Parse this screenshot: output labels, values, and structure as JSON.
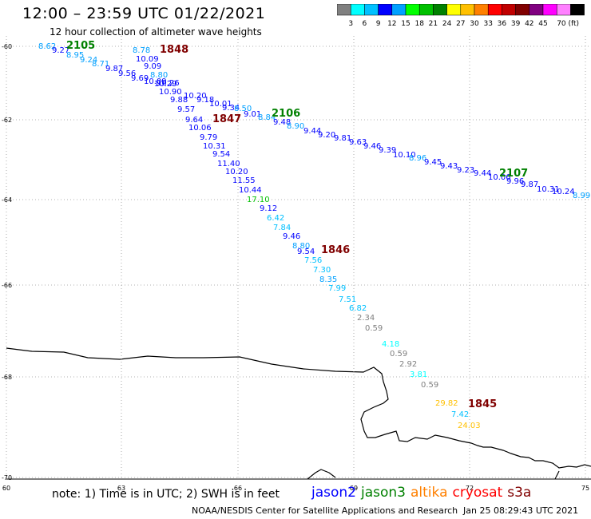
{
  "header": {
    "title": "12:00 – 23:59 UTC 01/22/2021",
    "subtitle": "12 hour collection of altimeter wave heights"
  },
  "colorbar": {
    "colors": [
      "#808080",
      "#00ffff",
      "#00c0ff",
      "#0000ff",
      "#00a0ff",
      "#00ff00",
      "#00c000",
      "#008000",
      "#ffff00",
      "#ffc000",
      "#ff8000",
      "#ff0000",
      "#c00000",
      "#800000",
      "#800080",
      "#ff00ff",
      "#ff80ff",
      "#000000"
    ],
    "labels": [
      "3",
      "6",
      "9",
      "12",
      "15",
      "18",
      "21",
      "24",
      "27",
      "30",
      "33",
      "36",
      "39",
      "42",
      "45",
      "70 (ft)"
    ]
  },
  "axes": {
    "lat_labels": [
      "-60",
      "-62",
      "-64",
      "-66",
      "-68",
      "-70"
    ],
    "lon_labels": [
      "60",
      "63",
      "66",
      "69",
      "72",
      "75"
    ]
  },
  "passes": [
    {
      "label": "2105",
      "color": "#008000"
    },
    {
      "label": "1848",
      "color": "#800000"
    },
    {
      "label": "1847",
      "color": "#800000"
    },
    {
      "label": "2106",
      "color": "#008000"
    },
    {
      "label": "2107",
      "color": "#008000"
    },
    {
      "label": "1846",
      "color": "#800000"
    },
    {
      "label": "1845",
      "color": "#800000"
    }
  ],
  "track_a": [
    {
      "v": "8.62",
      "c": "#00a0ff"
    },
    {
      "v": "9.27",
      "c": "#0000ff"
    },
    {
      "v": "8.95",
      "c": "#00a0ff"
    },
    {
      "v": "9.24",
      "c": "#00a0ff"
    },
    {
      "v": "8.71",
      "c": "#00a0ff"
    },
    {
      "v": "9.87",
      "c": "#0000ff"
    },
    {
      "v": "9.56",
      "c": "#0000ff"
    },
    {
      "v": "9.69",
      "c": "#0000ff"
    },
    {
      "v": "10.09",
      "c": "#0000ff"
    },
    {
      "v": "10.26",
      "c": "#0000ff"
    },
    {
      "v": "10.20",
      "c": "#0000ff"
    },
    {
      "v": "9.18",
      "c": "#0000ff"
    },
    {
      "v": "10.01",
      "c": "#0000ff"
    },
    {
      "v": "9.34",
      "c": "#0000ff"
    },
    {
      "v": "8.50",
      "c": "#00a0ff"
    },
    {
      "v": "9.01",
      "c": "#0000ff"
    },
    {
      "v": "8.84",
      "c": "#00a0ff"
    },
    {
      "v": "9.48",
      "c": "#0000ff"
    },
    {
      "v": "8.90",
      "c": "#00a0ff"
    },
    {
      "v": "9.44",
      "c": "#0000ff"
    },
    {
      "v": "9.20",
      "c": "#0000ff"
    },
    {
      "v": "9.81",
      "c": "#0000ff"
    },
    {
      "v": "9.63",
      "c": "#0000ff"
    },
    {
      "v": "9.46",
      "c": "#0000ff"
    },
    {
      "v": "9.39",
      "c": "#0000ff"
    },
    {
      "v": "10.10",
      "c": "#0000ff"
    },
    {
      "v": "8.96",
      "c": "#00a0ff"
    },
    {
      "v": "9.45",
      "c": "#0000ff"
    },
    {
      "v": "9.43",
      "c": "#0000ff"
    },
    {
      "v": "9.23",
      "c": "#0000ff"
    },
    {
      "v": "9.44",
      "c": "#0000ff"
    },
    {
      "v": "10.06",
      "c": "#0000ff"
    },
    {
      "v": "9.96",
      "c": "#0000ff"
    },
    {
      "v": "9.87",
      "c": "#0000ff"
    },
    {
      "v": "10.31",
      "c": "#0000ff"
    },
    {
      "v": "10.24",
      "c": "#0000ff"
    },
    {
      "v": "8.99",
      "c": "#00a0ff"
    }
  ],
  "track_b": [
    {
      "v": "8.78",
      "c": "#00a0ff"
    },
    {
      "v": "10.09",
      "c": "#0000ff"
    },
    {
      "v": "9.09",
      "c": "#0000ff"
    },
    {
      "v": "8.80",
      "c": "#00a0ff"
    },
    {
      "v": "10.29",
      "c": "#0000ff"
    },
    {
      "v": "10.90",
      "c": "#0000ff"
    },
    {
      "v": "9.88",
      "c": "#0000ff"
    },
    {
      "v": "9.57",
      "c": "#0000ff"
    },
    {
      "v": "9.64",
      "c": "#0000ff"
    },
    {
      "v": "10.06",
      "c": "#0000ff"
    },
    {
      "v": "9.79",
      "c": "#0000ff"
    },
    {
      "v": "10.31",
      "c": "#0000ff"
    },
    {
      "v": "9.54",
      "c": "#0000ff"
    },
    {
      "v": "11.40",
      "c": "#0000ff"
    },
    {
      "v": "10.20",
      "c": "#0000ff"
    },
    {
      "v": "11.55",
      "c": "#0000ff"
    },
    {
      "v": "10.44",
      "c": "#0000ff"
    },
    {
      "v": "17.10",
      "c": "#00c000"
    },
    {
      "v": "9.12",
      "c": "#0000ff"
    },
    {
      "v": "6.42",
      "c": "#00c0ff"
    },
    {
      "v": "7.84",
      "c": "#00c0ff"
    },
    {
      "v": "9.46",
      "c": "#0000ff"
    },
    {
      "v": "8.80",
      "c": "#00a0ff"
    },
    {
      "v": "9.54",
      "c": "#0000ff"
    },
    {
      "v": "7.56",
      "c": "#00c0ff"
    },
    {
      "v": "7.30",
      "c": "#00c0ff"
    },
    {
      "v": "8.35",
      "c": "#00a0ff"
    },
    {
      "v": "7.99",
      "c": "#00c0ff"
    },
    {
      "v": "7.51",
      "c": "#00c0ff"
    },
    {
      "v": "6.82",
      "c": "#00c0ff"
    },
    {
      "v": "2.34",
      "c": "#808080"
    },
    {
      "v": "0.59",
      "c": "#808080"
    },
    {
      "v": "4.18",
      "c": "#00ffff"
    },
    {
      "v": "0.59",
      "c": "#808080"
    },
    {
      "v": "2.92",
      "c": "#808080"
    },
    {
      "v": "3.81",
      "c": "#00ffff"
    },
    {
      "v": "0.59",
      "c": "#808080"
    },
    {
      "v": "29.82",
      "c": "#ffc000"
    },
    {
      "v": "7.42",
      "c": "#00c0ff"
    },
    {
      "v": "24.03",
      "c": "#ffc000"
    }
  ],
  "footer": {
    "note": "note: 1) Time is in UTC; 2) SWH is in feet",
    "legend": [
      {
        "name": "jason2",
        "color": "#0000ff"
      },
      {
        "name": "jason3",
        "color": "#008000"
      },
      {
        "name": "altika",
        "color": "#ff8000"
      },
      {
        "name": "cryosat",
        "color": "#ff0000"
      },
      {
        "name": "s3a",
        "color": "#800000"
      }
    ],
    "credit": "NOAA/NESDIS Center for Satellite Applications and Research",
    "date": "Jan 25 08:29:43 UTC 2021"
  }
}
